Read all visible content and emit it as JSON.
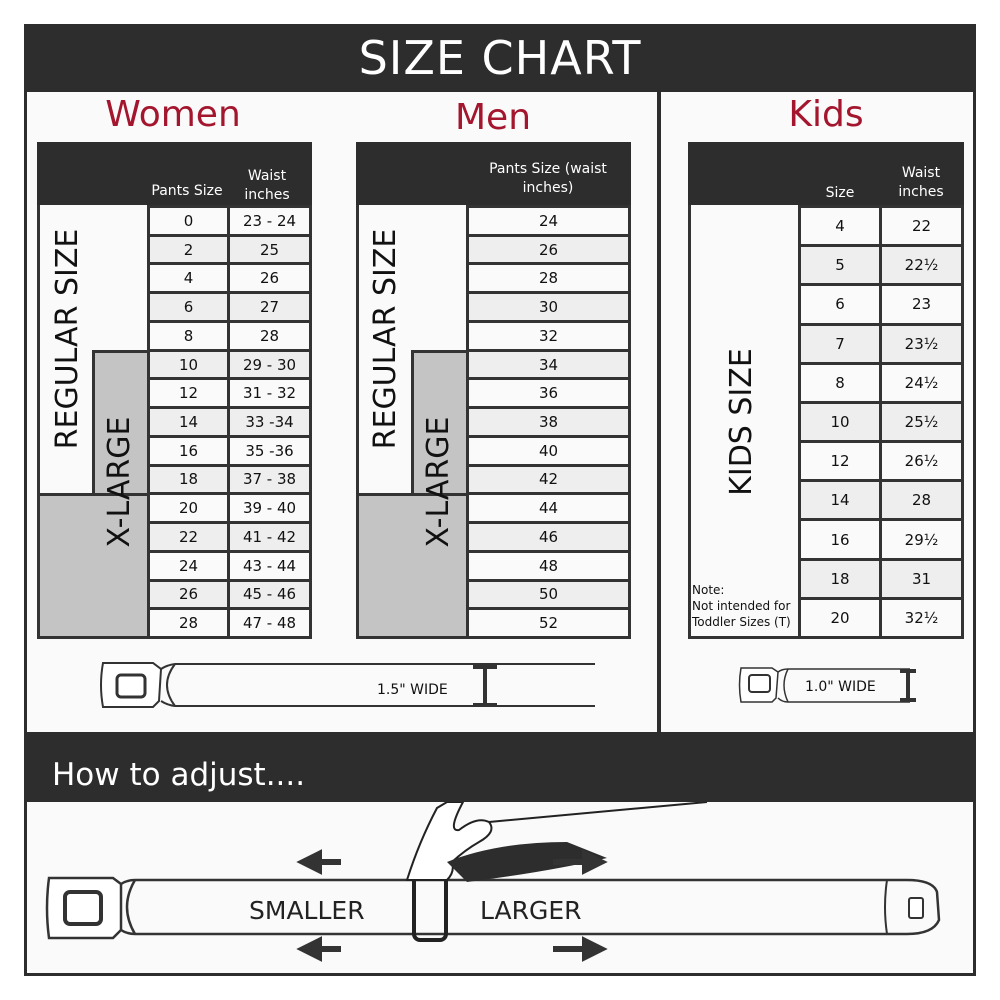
{
  "header": {
    "title": "SIZE CHART"
  },
  "women": {
    "title": "Women",
    "col_headers": [
      "Pants Size",
      "Waist inches"
    ],
    "regular_label": "REGULAR SIZE",
    "xlarge_label": "X-LARGE",
    "rows": [
      [
        "0",
        "23 - 24"
      ],
      [
        "2",
        "25"
      ],
      [
        "4",
        "26"
      ],
      [
        "6",
        "27"
      ],
      [
        "8",
        "28"
      ],
      [
        "10",
        "29 - 30"
      ],
      [
        "12",
        "31 - 32"
      ],
      [
        "14",
        "33 -34"
      ],
      [
        "16",
        "35 -36"
      ],
      [
        "18",
        "37 - 38"
      ],
      [
        "20",
        "39 - 40"
      ],
      [
        "22",
        "41 - 42"
      ],
      [
        "24",
        "43 - 44"
      ],
      [
        "26",
        "45 - 46"
      ],
      [
        "28",
        "47 - 48"
      ]
    ],
    "belt_width": "1.5\" WIDE"
  },
  "men": {
    "title": "Men",
    "col_headers": [
      "Pants Size (waist inches)"
    ],
    "regular_label": "REGULAR SIZE",
    "xlarge_label": "X-LARGE",
    "rows": [
      [
        "24"
      ],
      [
        "26"
      ],
      [
        "28"
      ],
      [
        "30"
      ],
      [
        "32"
      ],
      [
        "34"
      ],
      [
        "36"
      ],
      [
        "38"
      ],
      [
        "40"
      ],
      [
        "42"
      ],
      [
        "44"
      ],
      [
        "46"
      ],
      [
        "48"
      ],
      [
        "50"
      ],
      [
        "52"
      ]
    ]
  },
  "kids": {
    "title": "Kids",
    "col_headers": [
      "Size",
      "Waist inches"
    ],
    "label": "KIDS SIZE",
    "note": [
      "Note:",
      "Not intended for",
      "Toddler Sizes (T)"
    ],
    "rows": [
      [
        "4",
        "22"
      ],
      [
        "5",
        "22½"
      ],
      [
        "6",
        "23"
      ],
      [
        "7",
        "23½"
      ],
      [
        "8",
        "24½"
      ],
      [
        "10",
        "25½"
      ],
      [
        "12",
        "26½"
      ],
      [
        "14",
        "28"
      ],
      [
        "16",
        "29½"
      ],
      [
        "18",
        "31"
      ],
      [
        "20",
        "32½"
      ]
    ],
    "belt_width": "1.0\" WIDE"
  },
  "adjust": {
    "title": "How to adjust....",
    "smaller": "SMALLER",
    "larger": "LARGER"
  },
  "colors": {
    "title_red": "#a3162e",
    "dark": "#2d2d2d",
    "xlarge_gray": "#c4c4c4"
  }
}
